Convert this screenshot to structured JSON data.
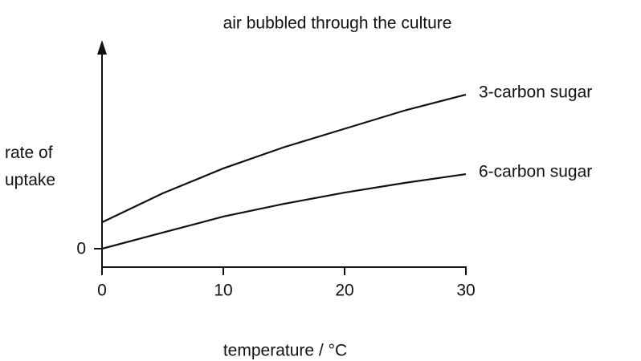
{
  "chart_data": {
    "type": "line",
    "title": "air bubbled through the culture",
    "xlabel": "temperature / °C",
    "ylabel": "rate of uptake",
    "x": [
      0,
      5,
      10,
      15,
      20,
      25,
      30
    ],
    "series": [
      {
        "name": "3-carbon sugar",
        "color": "#111111",
        "values": [
          1.43,
          3.0,
          4.35,
          5.5,
          6.5,
          7.5,
          8.35
        ]
      },
      {
        "name": "6-carbon sugar",
        "color": "#111111",
        "values": [
          0,
          0.87,
          1.74,
          2.43,
          3.04,
          3.57,
          4.04
        ]
      }
    ],
    "xlim": [
      0,
      30
    ],
    "xticks": [
      0,
      10,
      20,
      30
    ],
    "ylim": [
      -1,
      11
    ],
    "yticks": [
      0
    ],
    "grid": false
  }
}
